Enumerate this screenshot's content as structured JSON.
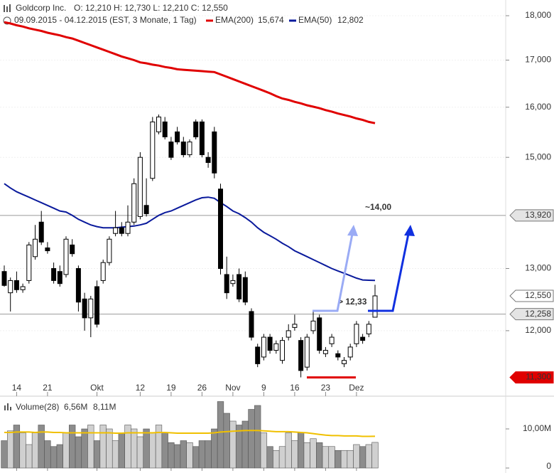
{
  "chart_data": {
    "type": "candlestick",
    "title": "Goldcorp Inc.",
    "quote": "O: 12,210  H: 12,730  L: 12,210  C: 12,550",
    "subtitle": "09.09.2015 - 04.12.2015 (EST, 3 Monate, 1 Tag)",
    "log_scale": true,
    "ylim": [
      11.05,
      18.2
    ],
    "yticks": [
      {
        "value": 12,
        "label": "12,000"
      },
      {
        "value": 13,
        "label": "13,000"
      },
      {
        "value": 15,
        "label": "15,000"
      },
      {
        "value": 16,
        "label": "16,000"
      },
      {
        "value": 17,
        "label": "17,000"
      },
      {
        "value": 18,
        "label": "18,000"
      }
    ],
    "xticks": [
      {
        "value": 2,
        "label": "14"
      },
      {
        "value": 7,
        "label": "21"
      },
      {
        "value": 15,
        "label": "Okt"
      },
      {
        "value": 22,
        "label": "12"
      },
      {
        "value": 27,
        "label": "19"
      },
      {
        "value": 32,
        "label": "26"
      },
      {
        "value": 37,
        "label": "Nov"
      },
      {
        "value": 42,
        "label": "9"
      },
      {
        "value": 47,
        "label": "16"
      },
      {
        "value": 52,
        "label": "23"
      },
      {
        "value": 57,
        "label": "Dez"
      }
    ],
    "open": [
      12.95,
      12.6,
      12.8,
      12.65,
      12.8,
      13.2,
      13.8,
      13.35,
      13.0,
      12.95,
      12.9,
      13.4,
      13.0,
      12.5,
      12.2,
      12.7,
      12.8,
      13.1,
      13.6,
      13.7,
      13.6,
      13.8,
      13.9,
      14.1,
      14.6,
      15.5,
      15.7,
      15.3,
      15.5,
      15.3,
      15.05,
      15.7,
      15.7,
      15.0,
      15.5,
      14.4,
      12.9,
      12.75,
      12.9,
      12.85,
      12.3,
      11.75,
      11.6,
      11.9,
      11.7,
      11.55,
      11.9,
      12.05,
      11.85,
      11.45,
      12.0,
      12.2,
      11.65,
      11.8,
      11.65,
      11.5,
      11.6,
      11.8,
      11.9,
      11.95,
      12.21
    ],
    "high": [
      13.05,
      12.85,
      12.95,
      12.75,
      13.45,
      13.75,
      14.0,
      13.45,
      13.1,
      13.05,
      13.55,
      13.5,
      13.05,
      12.6,
      12.55,
      12.8,
      13.15,
      13.55,
      14.0,
      13.8,
      14.1,
      14.6,
      15.1,
      14.6,
      15.8,
      15.85,
      15.8,
      15.4,
      15.6,
      15.4,
      15.35,
      15.75,
      15.75,
      15.1,
      15.6,
      14.5,
      13.2,
      12.9,
      13.0,
      12.95,
      12.35,
      11.8,
      11.95,
      11.95,
      11.85,
      11.9,
      12.1,
      12.25,
      11.9,
      11.95,
      12.3,
      12.25,
      11.75,
      11.95,
      11.7,
      11.6,
      11.8,
      12.15,
      11.95,
      12.15,
      12.73
    ],
    "low": [
      12.7,
      12.3,
      12.6,
      12.6,
      12.75,
      13.15,
      13.4,
      13.25,
      12.75,
      12.7,
      12.85,
      13.2,
      12.3,
      12.0,
      11.9,
      12.05,
      12.75,
      13.05,
      13.55,
      13.55,
      13.55,
      13.75,
      13.85,
      13.9,
      14.55,
      15.45,
      15.35,
      14.95,
      15.25,
      15.0,
      15.0,
      15.35,
      15.0,
      14.8,
      14.6,
      12.9,
      12.5,
      12.7,
      12.45,
      12.4,
      11.85,
      11.45,
      11.55,
      11.65,
      11.65,
      11.5,
      11.85,
      12.0,
      11.3,
      11.4,
      11.95,
      11.65,
      11.6,
      11.75,
      11.55,
      11.45,
      11.55,
      11.75,
      11.8,
      11.9,
      12.21
    ],
    "close": [
      12.72,
      12.8,
      12.65,
      12.7,
      13.4,
      13.5,
      13.45,
      13.3,
      12.8,
      12.75,
      13.5,
      13.25,
      12.45,
      12.2,
      12.5,
      12.1,
      13.1,
      13.5,
      13.7,
      13.6,
      13.8,
      14.5,
      15.0,
      13.95,
      15.7,
      15.8,
      15.4,
      15.0,
      15.3,
      15.05,
      15.3,
      15.4,
      15.05,
      14.9,
      14.7,
      13.0,
      12.6,
      12.8,
      12.5,
      12.45,
      11.9,
      11.5,
      11.9,
      11.7,
      11.8,
      11.85,
      12.0,
      12.1,
      11.4,
      11.9,
      12.15,
      11.7,
      11.7,
      11.9,
      11.6,
      11.55,
      11.75,
      12.1,
      11.85,
      12.1,
      12.55
    ],
    "overlays": [
      {
        "name": "EMA(200)",
        "value_label": "15,674",
        "color": "#e00000",
        "values": [
          17.85,
          17.82,
          17.78,
          17.75,
          17.71,
          17.68,
          17.65,
          17.61,
          17.58,
          17.55,
          17.51,
          17.48,
          17.43,
          17.38,
          17.33,
          17.28,
          17.23,
          17.18,
          17.13,
          17.08,
          17.04,
          17.0,
          16.95,
          16.93,
          16.9,
          16.88,
          16.85,
          16.83,
          16.8,
          16.79,
          16.78,
          16.77,
          16.76,
          16.75,
          16.74,
          16.69,
          16.64,
          16.59,
          16.54,
          16.49,
          16.44,
          16.39,
          16.34,
          16.29,
          16.23,
          16.18,
          16.15,
          16.11,
          16.08,
          16.04,
          16.01,
          15.98,
          15.94,
          15.91,
          15.87,
          15.84,
          15.81,
          15.77,
          15.74,
          15.7,
          15.674
        ]
      },
      {
        "name": "EMA(50)",
        "value_label": "12,802",
        "color": "#0a1a9c",
        "values": [
          14.5,
          14.42,
          14.35,
          14.3,
          14.25,
          14.2,
          14.15,
          14.1,
          14.05,
          14.0,
          13.98,
          13.92,
          13.85,
          13.8,
          13.75,
          13.72,
          13.7,
          13.7,
          13.7,
          13.71,
          13.72,
          13.73,
          13.75,
          13.78,
          13.85,
          13.92,
          13.97,
          14.0,
          14.05,
          14.1,
          14.15,
          14.2,
          14.24,
          14.25,
          14.23,
          14.15,
          14.08,
          14.0,
          13.95,
          13.88,
          13.8,
          13.7,
          13.62,
          13.56,
          13.5,
          13.43,
          13.37,
          13.3,
          13.25,
          13.2,
          13.15,
          13.1,
          13.05,
          13.0,
          12.96,
          12.92,
          12.88,
          12.84,
          12.81,
          12.805,
          12.802
        ]
      }
    ],
    "price_markers": [
      {
        "value": 13.92,
        "label": "13,920",
        "color": "#e4e4e4"
      },
      {
        "value": 12.55,
        "label": "12,550",
        "color": "#ffffff"
      },
      {
        "value": 12.258,
        "label": "12,258",
        "color": "#e4e4e4"
      },
      {
        "value": 11.3,
        "label": "11,300",
        "color": "#e00000"
      }
    ],
    "annotations": [
      "~14,00",
      "> 12,33"
    ],
    "volume": {
      "name": "Volume(28)",
      "last_label": "6,56M",
      "avg_label": "8,11M",
      "avg_color": "#f0c000",
      "ylim": [
        0,
        18
      ],
      "yticks": [
        0,
        {
          "value": 10,
          "label": "10,00M"
        }
      ],
      "values": [
        7,
        9.5,
        11,
        9,
        6,
        9,
        11,
        7,
        5.5,
        6,
        9,
        11,
        8,
        10,
        11,
        7,
        11,
        10,
        7,
        9,
        11,
        10,
        8,
        10,
        9,
        11,
        9,
        6.5,
        6,
        7,
        6.5,
        5.5,
        7,
        7,
        10,
        17,
        14,
        12,
        11,
        12,
        15,
        16,
        9,
        5.5,
        4.5,
        5.5,
        9,
        7,
        9,
        6.5,
        7.5,
        6.5,
        5.5,
        5.5,
        4.5,
        4.5,
        4.5,
        6,
        5.5,
        6,
        6.56
      ],
      "avg_values": [
        9.1,
        9.1,
        9.2,
        9.2,
        9.2,
        9.1,
        9.2,
        9.2,
        9.1,
        9.1,
        9.0,
        9.0,
        9.0,
        9.0,
        9.0,
        9.0,
        9.0,
        9.0,
        8.9,
        8.9,
        9.0,
        9.0,
        9.0,
        9.0,
        9.0,
        9.1,
        9.1,
        9.0,
        8.9,
        8.9,
        8.9,
        8.9,
        8.9,
        8.9,
        9.0,
        9.2,
        9.3,
        9.4,
        9.5,
        9.6,
        9.6,
        9.6,
        9.5,
        9.4,
        9.3,
        9.3,
        9.3,
        9.2,
        9.1,
        9.0,
        8.8,
        8.6,
        8.4,
        8.3,
        8.3,
        8.2,
        8.2,
        8.2,
        8.1,
        8.1,
        8.11
      ]
    }
  }
}
